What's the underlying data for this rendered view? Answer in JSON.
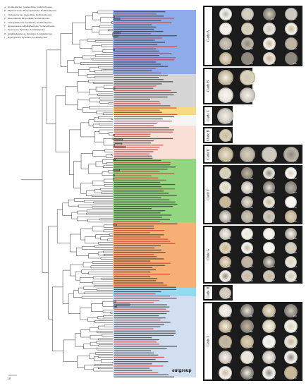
{
  "legend": [
    {
      "key": "A",
      "text": "Glomerellaceae, Glomerellales, Sordariomycetes"
    },
    {
      "key": "B",
      "text": "Phyllostictaceae, Botryosphaeriales, Dothideomycetes"
    },
    {
      "key": "C",
      "text": "Cladosporiaceae, Capnodiales, Dothideomycetes"
    },
    {
      "key": "D",
      "text": "Diaporthaceae, Diaporthales, Sordariomycetes"
    },
    {
      "key": "E",
      "text": "Lasiosphaeriaceae, Sordariales, Sordariomycetes"
    },
    {
      "key": "F",
      "text": "Apiosporaceae, Amphisphaeriales, Sordariomycetes"
    },
    {
      "key": "G",
      "text": "Xylariaceae, Xylariales, Sordariomycetes"
    },
    {
      "key": "H",
      "text": "Amphisphaeriaceae, Xylariales, Sordariomycetes"
    },
    {
      "key": "I",
      "text": "Hypoxylaceae, Xylariales, Sordariomycetes"
    }
  ],
  "scale_bar": "1.0",
  "outgroup_label": "outgroup",
  "clade_panels": [
    {
      "label": "Clade A",
      "code_prefix": "P",
      "rows": 4,
      "cols": 4
    },
    {
      "label": "Clade B",
      "code_prefix": "P",
      "rows": 2,
      "cols": 2
    },
    {
      "label": "Clade C",
      "code_prefix": "P",
      "rows": 1,
      "cols": 1
    },
    {
      "label": "Clade D",
      "code_prefix": "P",
      "rows": 1,
      "cols": 1
    },
    {
      "label": "Clade E",
      "code_prefix": "P",
      "rows": 1,
      "cols": 4
    },
    {
      "label": "Clade F",
      "code_prefix": "P",
      "rows": 4,
      "cols": 4
    },
    {
      "label": "Clade G",
      "code_prefix": "P",
      "rows": 4,
      "cols": 4
    },
    {
      "label": "Clade H",
      "code_prefix": "P",
      "rows": 1,
      "cols": 1
    },
    {
      "label": "Clade I",
      "code_prefix": "P",
      "rows": 5,
      "cols": 4
    }
  ],
  "colors": {
    "band_A": "#7b9ee6",
    "band_B": "#cfcfcf",
    "band_D": "#f6d36b",
    "band_E": "#f9d9cf",
    "band_F": "#7fcf6a",
    "band_G": "#f5a15c",
    "band_H": "#7fd3ea",
    "band_I": "#c9d9ef",
    "taxon_red": "#d0312d",
    "tree_line": "#333333",
    "panel_bg": "#1b1b1b"
  }
}
